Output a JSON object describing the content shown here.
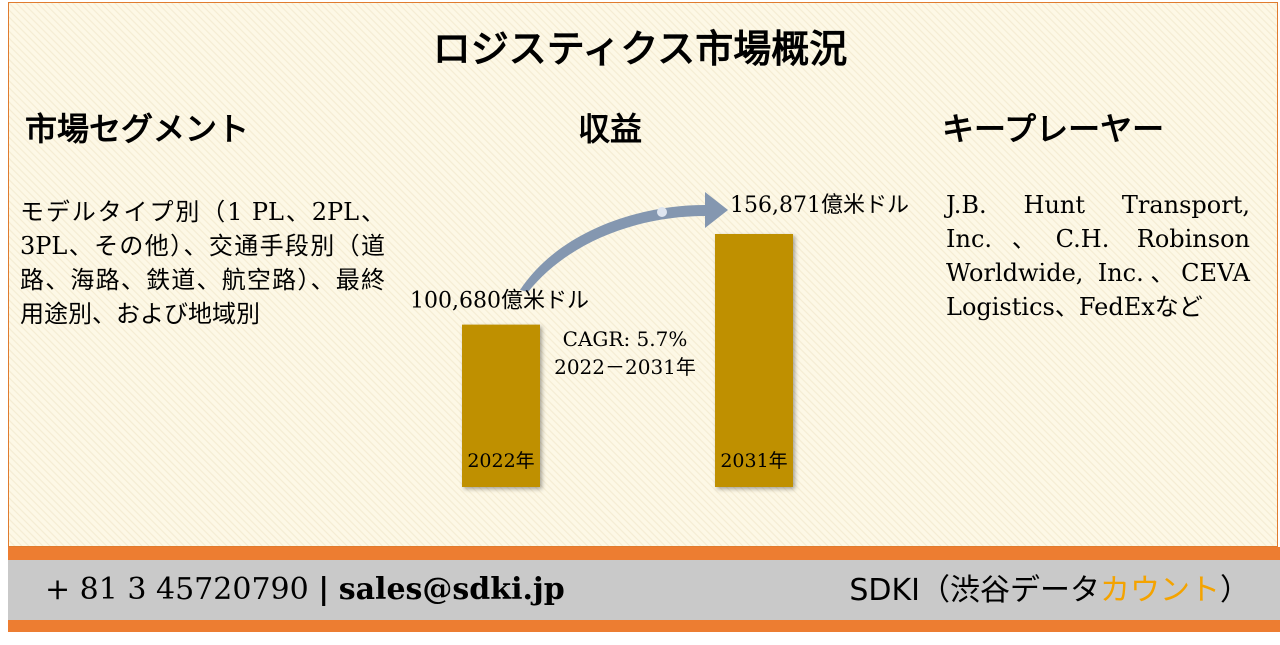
{
  "title": "ロジスティクス市場概況",
  "segments": {
    "heading": "市場セグメント",
    "text": "モデルタイプ別（1 PL、2PL、3PL、その他）、交通手段別（道路、海路、鉄道、航空路）、最終用途別、および地域別"
  },
  "players": {
    "heading": "キープレーヤー",
    "text": "J.B. Hunt Transport, Inc.、C.H. Robinson Worldwide, Inc.、CEVA Logistics、FedExなど"
  },
  "chart_data": {
    "type": "bar",
    "title": "収益",
    "categories": [
      "2022年",
      "2031年"
    ],
    "values": [
      100680,
      156871
    ],
    "value_labels": [
      "100,680億米ドル",
      "156,871億米ドル"
    ],
    "color": "#bf9000",
    "annotations": [
      "CAGR: 5.7%",
      "2022－2031年"
    ]
  },
  "footer": {
    "phone": "+ 81 3 45720790",
    "separator": "|",
    "email": "sales@sdki.jp",
    "company": "SDKI（渋谷データ",
    "company_highlight": "カウント",
    "company_end": "）"
  }
}
